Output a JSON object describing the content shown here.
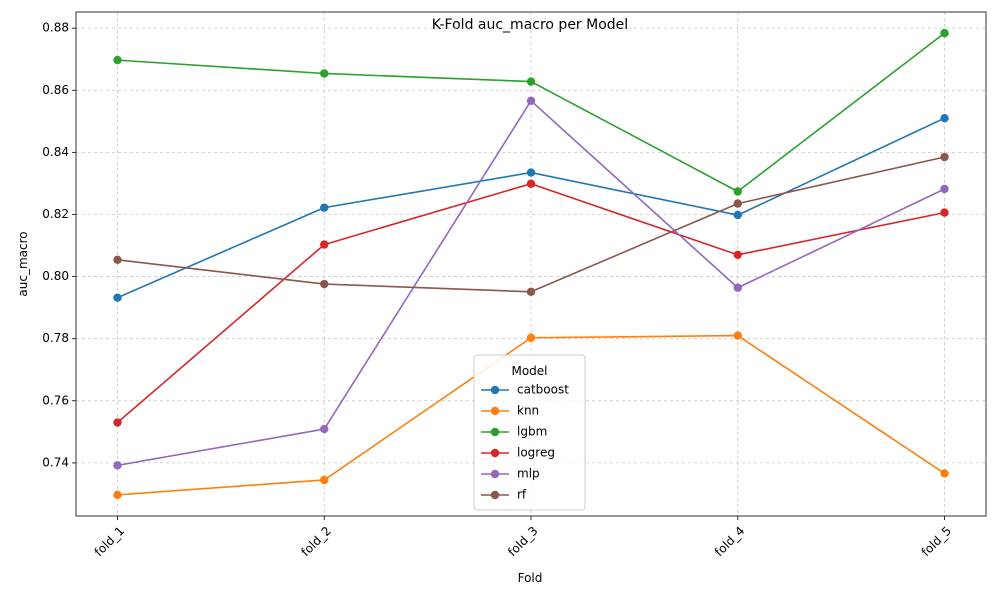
{
  "chart_data": {
    "type": "line",
    "title": "K-Fold auc_macro per Model",
    "xlabel": "Fold",
    "ylabel": "auc_macro",
    "categories": [
      "fold_1",
      "fold_2",
      "fold_3",
      "fold_4",
      "fold_5"
    ],
    "ylim": [
      0.7229,
      0.8852
    ],
    "yticks": [
      0.74,
      0.76,
      0.78,
      0.8,
      0.82,
      0.84,
      0.86,
      0.88
    ],
    "ytick_labels": [
      "0.74",
      "0.76",
      "0.78",
      "0.80",
      "0.82",
      "0.84",
      "0.86",
      "0.88"
    ],
    "grid": true,
    "legend": {
      "title": "Model",
      "placement": "lower-center"
    },
    "series": [
      {
        "name": "catboost",
        "color": "#1f77b4",
        "values": [
          0.7932,
          0.8222,
          0.8335,
          0.8198,
          0.851
        ]
      },
      {
        "name": "knn",
        "color": "#ff7f0e",
        "values": [
          0.7297,
          0.7345,
          0.7803,
          0.781,
          0.7366
        ]
      },
      {
        "name": "lgbm",
        "color": "#2ca02c",
        "values": [
          0.8697,
          0.8654,
          0.8628,
          0.8274,
          0.8784
        ]
      },
      {
        "name": "logreg",
        "color": "#d62728",
        "values": [
          0.753,
          0.8103,
          0.8299,
          0.807,
          0.8206
        ]
      },
      {
        "name": "mlp",
        "color": "#9467bd",
        "values": [
          0.7392,
          0.7509,
          0.8566,
          0.7964,
          0.8282
        ]
      },
      {
        "name": "rf",
        "color": "#8c564b",
        "values": [
          0.8054,
          0.7976,
          0.7951,
          0.8235,
          0.8385
        ]
      }
    ]
  }
}
